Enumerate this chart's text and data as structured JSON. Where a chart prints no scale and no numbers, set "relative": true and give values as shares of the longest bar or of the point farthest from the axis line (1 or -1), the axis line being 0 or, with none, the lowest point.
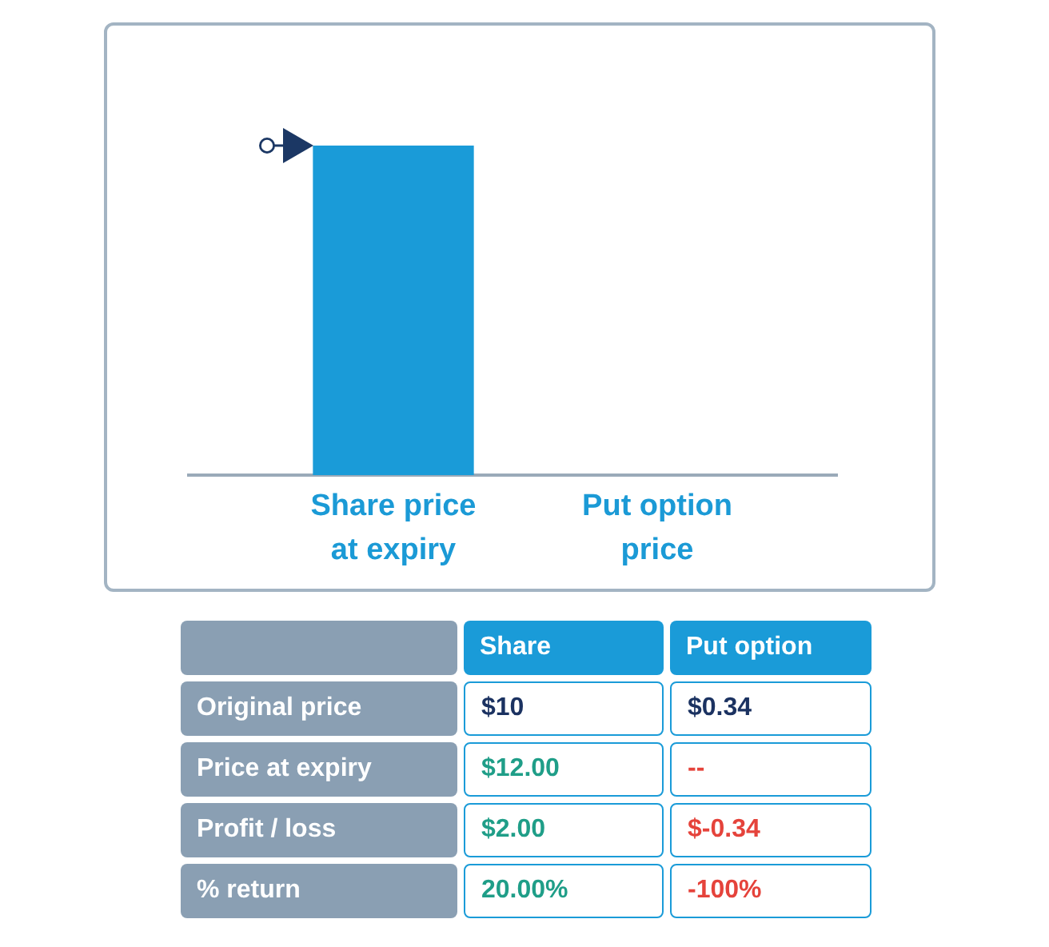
{
  "chart_data": [
    {
      "type": "bar",
      "categories": [
        "Share price at expiry",
        "Put option price"
      ],
      "values": [
        1,
        null
      ],
      "color": "#1a9bd8",
      "relative": true
    },
    {
      "type": "other",
      "categories": [
        "Share",
        "Put option"
      ],
      "y_categories": [
        "Original price",
        "Price at expiry",
        "Profit / loss",
        "% return"
      ],
      "cell_labels": [
        [
          "$10",
          "$0.34"
        ],
        [
          "$12.00",
          "--"
        ],
        [
          "$2.00",
          "$-0.34"
        ],
        [
          "20.00%",
          "-100%"
        ]
      ]
    }
  ]
}
